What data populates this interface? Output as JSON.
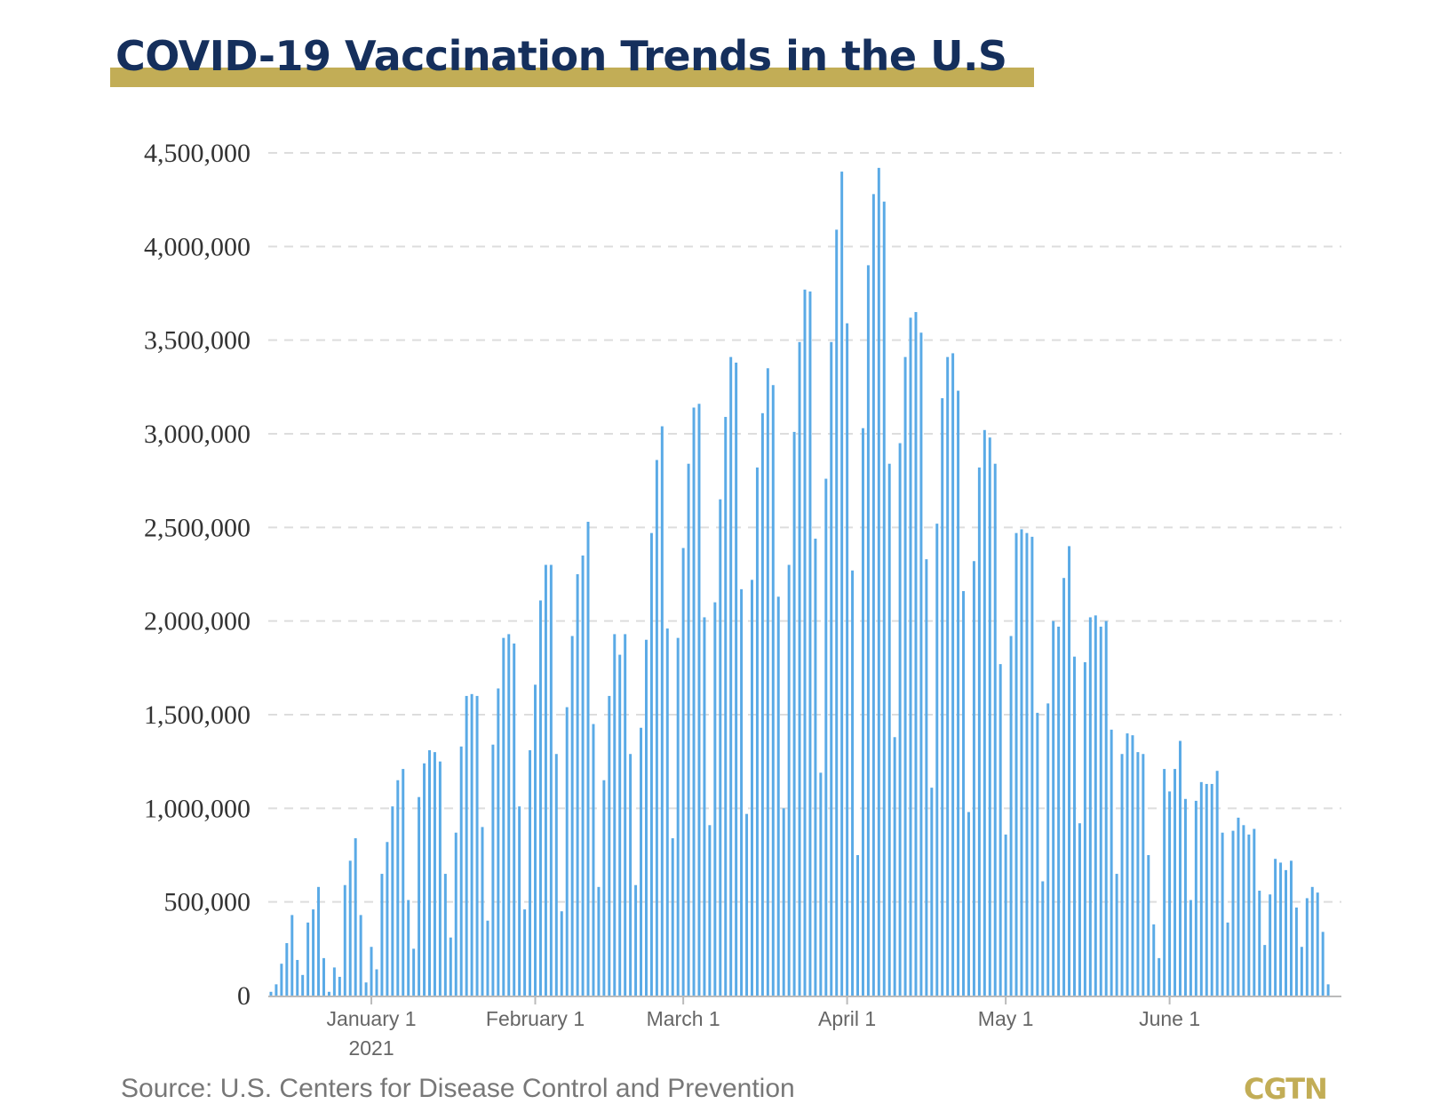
{
  "source": "Source: U.S. Centers for Disease Control and Prevention",
  "logo": "CGTN",
  "colors": {
    "bar": "#5aaae6",
    "title": "#152f5c",
    "accent": "#c2ad56"
  },
  "chart_data": {
    "type": "bar",
    "title": "COVID-19 Vaccination Trends in the U.S",
    "xlabel": "",
    "ylabel": "",
    "ylim": [
      0,
      4500000
    ],
    "grid": true,
    "y_ticks": [
      {
        "value": 0,
        "label": "0"
      },
      {
        "value": 500000,
        "label": "500,000"
      },
      {
        "value": 1000000,
        "label": "1,000,000"
      },
      {
        "value": 1500000,
        "label": "1,500,000"
      },
      {
        "value": 2000000,
        "label": "2,000,000"
      },
      {
        "value": 2500000,
        "label": "2,500,000"
      },
      {
        "value": 3000000,
        "label": "3,000,000"
      },
      {
        "value": 3500000,
        "label": "3,500,000"
      },
      {
        "value": 4000000,
        "label": "4,000,000"
      },
      {
        "value": 4500000,
        "label": "4,500,000"
      }
    ],
    "x_ticks": [
      {
        "date": "2020-12-31",
        "label": "January 1",
        "sublabel": "2021"
      },
      {
        "date": "2021-01-31",
        "label": "February 1"
      },
      {
        "date": "2021-02-28",
        "label": "March 1"
      },
      {
        "date": "2021-03-31",
        "label": "April 1"
      },
      {
        "date": "2021-04-30",
        "label": "May 1"
      },
      {
        "date": "2021-05-31",
        "label": "June 1"
      }
    ],
    "x": [
      "2020-12-12",
      "2020-12-13",
      "2020-12-14",
      "2020-12-15",
      "2020-12-16",
      "2020-12-17",
      "2020-12-18",
      "2020-12-19",
      "2020-12-20",
      "2020-12-21",
      "2020-12-22",
      "2020-12-23",
      "2020-12-24",
      "2020-12-25",
      "2020-12-26",
      "2020-12-27",
      "2020-12-28",
      "2020-12-29",
      "2020-12-30",
      "2020-12-31",
      "2021-01-01",
      "2021-01-02",
      "2021-01-03",
      "2021-01-04",
      "2021-01-05",
      "2021-01-06",
      "2021-01-07",
      "2021-01-08",
      "2021-01-09",
      "2021-01-10",
      "2021-01-11",
      "2021-01-12",
      "2021-01-13",
      "2021-01-14",
      "2021-01-15",
      "2021-01-16",
      "2021-01-17",
      "2021-01-18",
      "2021-01-19",
      "2021-01-20",
      "2021-01-21",
      "2021-01-22",
      "2021-01-23",
      "2021-01-24",
      "2021-01-25",
      "2021-01-26",
      "2021-01-27",
      "2021-01-28",
      "2021-01-29",
      "2021-01-30",
      "2021-01-31",
      "2021-02-01",
      "2021-02-02",
      "2021-02-03",
      "2021-02-04",
      "2021-02-05",
      "2021-02-06",
      "2021-02-07",
      "2021-02-08",
      "2021-02-09",
      "2021-02-10",
      "2021-02-11",
      "2021-02-12",
      "2021-02-13",
      "2021-02-14",
      "2021-02-15",
      "2021-02-16",
      "2021-02-17",
      "2021-02-18",
      "2021-02-19",
      "2021-02-20",
      "2021-02-21",
      "2021-02-22",
      "2021-02-23",
      "2021-02-24",
      "2021-02-25",
      "2021-02-26",
      "2021-02-27",
      "2021-02-28",
      "2021-03-01",
      "2021-03-02",
      "2021-03-03",
      "2021-03-04",
      "2021-03-05",
      "2021-03-06",
      "2021-03-07",
      "2021-03-08",
      "2021-03-09",
      "2021-03-10",
      "2021-03-11",
      "2021-03-12",
      "2021-03-13",
      "2021-03-14",
      "2021-03-15",
      "2021-03-16",
      "2021-03-17",
      "2021-03-18",
      "2021-03-19",
      "2021-03-20",
      "2021-03-21",
      "2021-03-22",
      "2021-03-23",
      "2021-03-24",
      "2021-03-25",
      "2021-03-26",
      "2021-03-27",
      "2021-03-28",
      "2021-03-29",
      "2021-03-30",
      "2021-03-31",
      "2021-04-01",
      "2021-04-02",
      "2021-04-03",
      "2021-04-04",
      "2021-04-05",
      "2021-04-06",
      "2021-04-07",
      "2021-04-08",
      "2021-04-09",
      "2021-04-10",
      "2021-04-11",
      "2021-04-12",
      "2021-04-13",
      "2021-04-14",
      "2021-04-15",
      "2021-04-16",
      "2021-04-17",
      "2021-04-18",
      "2021-04-19",
      "2021-04-20",
      "2021-04-21",
      "2021-04-22",
      "2021-04-23",
      "2021-04-24",
      "2021-04-25",
      "2021-04-26",
      "2021-04-27",
      "2021-04-28",
      "2021-04-29",
      "2021-04-30",
      "2021-05-01",
      "2021-05-02",
      "2021-05-03",
      "2021-05-04",
      "2021-05-05",
      "2021-05-06",
      "2021-05-07",
      "2021-05-08",
      "2021-05-09",
      "2021-05-10",
      "2021-05-11",
      "2021-05-12",
      "2021-05-13",
      "2021-05-14",
      "2021-05-15",
      "2021-05-16",
      "2021-05-17",
      "2021-05-18",
      "2021-05-19",
      "2021-05-20",
      "2021-05-21",
      "2021-05-22",
      "2021-05-23",
      "2021-05-24",
      "2021-05-25",
      "2021-05-26",
      "2021-05-27",
      "2021-05-28",
      "2021-05-29",
      "2021-05-30",
      "2021-05-31",
      "2021-06-01",
      "2021-06-02",
      "2021-06-03",
      "2021-06-04",
      "2021-06-05",
      "2021-06-06",
      "2021-06-07",
      "2021-06-08",
      "2021-06-09",
      "2021-06-10",
      "2021-06-11",
      "2021-06-12",
      "2021-06-13",
      "2021-06-14",
      "2021-06-15",
      "2021-06-16",
      "2021-06-17",
      "2021-06-18",
      "2021-06-19",
      "2021-06-20",
      "2021-06-21",
      "2021-06-22",
      "2021-06-23",
      "2021-06-24",
      "2021-06-25",
      "2021-06-26",
      "2021-06-27",
      "2021-06-28",
      "2021-06-29",
      "2021-06-30",
      "2021-07-01",
      "2021-07-02"
    ],
    "values": [
      20000,
      60000,
      170000,
      280000,
      430000,
      190000,
      110000,
      390000,
      460000,
      580000,
      200000,
      20000,
      150000,
      100000,
      590000,
      720000,
      840000,
      430000,
      70000,
      260000,
      140000,
      650000,
      820000,
      1010000,
      1150000,
      1210000,
      510000,
      250000,
      1060000,
      1240000,
      1310000,
      1300000,
      1250000,
      650000,
      310000,
      870000,
      1330000,
      1600000,
      1610000,
      1600000,
      900000,
      400000,
      1340000,
      1640000,
      1910000,
      1930000,
      1880000,
      1010000,
      460000,
      1310000,
      1660000,
      2110000,
      2300000,
      2300000,
      1290000,
      450000,
      1540000,
      1920000,
      2250000,
      2350000,
      2530000,
      1450000,
      580000,
      1150000,
      1600000,
      1930000,
      1820000,
      1930000,
      1290000,
      590000,
      1430000,
      1900000,
      2470000,
      2860000,
      3040000,
      1960000,
      840000,
      1910000,
      2390000,
      2840000,
      3140000,
      3160000,
      2020000,
      910000,
      2100000,
      2650000,
      3090000,
      3410000,
      3380000,
      2170000,
      970000,
      2220000,
      2820000,
      3110000,
      3350000,
      3260000,
      2130000,
      1000000,
      2300000,
      3010000,
      3490000,
      3770000,
      3760000,
      2440000,
      1190000,
      2760000,
      3490000,
      4090000,
      4400000,
      3590000,
      2270000,
      750000,
      3030000,
      3900000,
      4280000,
      4420000,
      4240000,
      2840000,
      1380000,
      2950000,
      3410000,
      3620000,
      3650000,
      3540000,
      2330000,
      1110000,
      2520000,
      3190000,
      3410000,
      3430000,
      3230000,
      2160000,
      980000,
      2320000,
      2820000,
      3020000,
      2980000,
      2840000,
      1770000,
      860000,
      1920000,
      2470000,
      2490000,
      2470000,
      2450000,
      1510000,
      610000,
      1560000,
      2000000,
      1970000,
      2230000,
      2400000,
      1810000,
      920000,
      1780000,
      2020000,
      2030000,
      1970000,
      2000000,
      1420000,
      650000,
      1290000,
      1400000,
      1390000,
      1300000,
      1290000,
      750000,
      380000,
      200000,
      1210000,
      1090000,
      1210000,
      1360000,
      1050000,
      510000,
      1040000,
      1140000,
      1130000,
      1130000,
      1200000,
      870000,
      390000,
      880000,
      950000,
      910000,
      860000,
      890000,
      560000,
      270000,
      540000,
      730000,
      710000,
      670000,
      720000,
      470000,
      260000,
      520000,
      580000,
      550000,
      340000,
      60000,
      0,
      0
    ]
  }
}
